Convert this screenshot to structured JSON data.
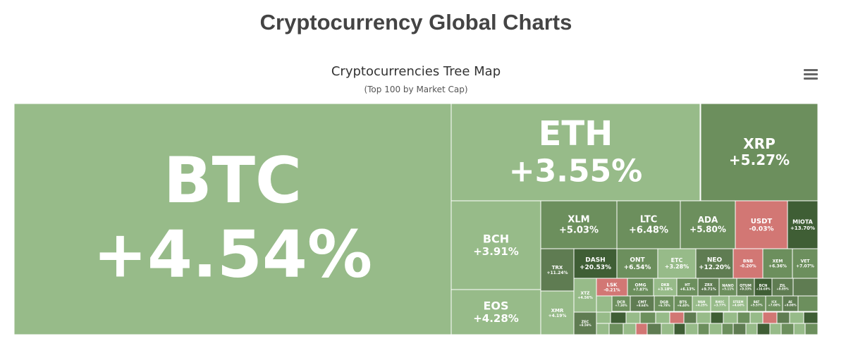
{
  "page": {
    "title": "Cryptocurrency Global Charts"
  },
  "colors": {
    "up_light": "#97bb89",
    "up_mid": "#6c8f5d",
    "up_dark": "#5f7c52",
    "up_darker": "#3f5e35",
    "down": "#d27774",
    "border": "#ffffff"
  },
  "chart_data": {
    "type": "treemap",
    "title": "Cryptocurrencies Tree Map",
    "subtitle": "(Top 100 by Market Cap)",
    "tiles": [
      {
        "symbol": "BTC",
        "change": "+4.54%",
        "change_value": 4.54
      },
      {
        "symbol": "ETH",
        "change": "+3.55%",
        "change_value": 3.55
      },
      {
        "symbol": "XRP",
        "change": "+5.27%",
        "change_value": 5.27
      },
      {
        "symbol": "BCH",
        "change": "+3.91%",
        "change_value": 3.91
      },
      {
        "symbol": "EOS",
        "change": "+4.28%",
        "change_value": 4.28
      },
      {
        "symbol": "XLM",
        "change": "+5.03%",
        "change_value": 5.03
      },
      {
        "symbol": "LTC",
        "change": "+6.48%",
        "change_value": 6.48
      },
      {
        "symbol": "ADA",
        "change": "+5.80%",
        "change_value": 5.8
      },
      {
        "symbol": "USDT",
        "change": "-0.03%",
        "change_value": -0.03
      },
      {
        "symbol": "MIOTA",
        "change": "+13.70%",
        "change_value": 13.7
      },
      {
        "symbol": "TRX",
        "change": "+11.24%",
        "change_value": 11.24
      },
      {
        "symbol": "DASH",
        "change": "+20.53%",
        "change_value": 20.53
      },
      {
        "symbol": "ONT",
        "change": "+6.54%",
        "change_value": 6.54
      },
      {
        "symbol": "ETC",
        "change": "+3.28%",
        "change_value": 3.28
      },
      {
        "symbol": "NEO",
        "change": "+12.20%",
        "change_value": 12.2
      },
      {
        "symbol": "BNB",
        "change": "-0.20%",
        "change_value": -0.2
      },
      {
        "symbol": "XEM",
        "change": "+6.36%",
        "change_value": 6.36
      },
      {
        "symbol": "VET",
        "change": "+7.07%",
        "change_value": 7.07
      },
      {
        "symbol": "XMR",
        "change": "+4.19%",
        "change_value": 4.19
      },
      {
        "symbol": "XTZ",
        "change": "+4.56%",
        "change_value": 4.56
      },
      {
        "symbol": "LSK",
        "change": "-0.21%",
        "change_value": -0.21
      },
      {
        "symbol": "OMG",
        "change": "+7.87%",
        "change_value": 7.87
      },
      {
        "symbol": "DKB",
        "change": "+3.18%",
        "change_value": 3.18
      },
      {
        "symbol": "HT",
        "change": "+6.13%",
        "change_value": 6.13
      },
      {
        "symbol": "ZRX",
        "change": "+9.71%",
        "change_value": 9.71
      },
      {
        "symbol": "NANO",
        "change": "+5.11%",
        "change_value": 5.11
      },
      {
        "symbol": "QTUM",
        "change": "+9.33%",
        "change_value": 9.33
      },
      {
        "symbol": "BCN",
        "change": "+16.69%",
        "change_value": 16.69
      },
      {
        "symbol": "ZIL",
        "change": "+8.85%",
        "change_value": 8.85
      },
      {
        "symbol": "ZEC",
        "change": "+8.59%",
        "change_value": 8.59
      },
      {
        "symbol": "DCR",
        "change": "+7.30%",
        "change_value": 7.3
      },
      {
        "symbol": "CMT",
        "change": "+8.64%",
        "change_value": 8.64
      },
      {
        "symbol": "DGB",
        "change": "+6.78%",
        "change_value": 6.78
      },
      {
        "symbol": "BTS",
        "change": "+6.40%",
        "change_value": 6.4
      },
      {
        "symbol": "WAN",
        "change": "+4.25%",
        "change_value": 4.25
      },
      {
        "symbol": "RHOC",
        "change": "+3.77%",
        "change_value": 3.77
      },
      {
        "symbol": "STEEM",
        "change": "+4.60%",
        "change_value": 4.6
      },
      {
        "symbol": "BAT",
        "change": "+5.57%",
        "change_value": 5.57
      },
      {
        "symbol": "ICX",
        "change": "+7.08%",
        "change_value": 7.08
      },
      {
        "symbol": "AE",
        "change": "+9.08%",
        "change_value": 9.08
      }
    ]
  }
}
